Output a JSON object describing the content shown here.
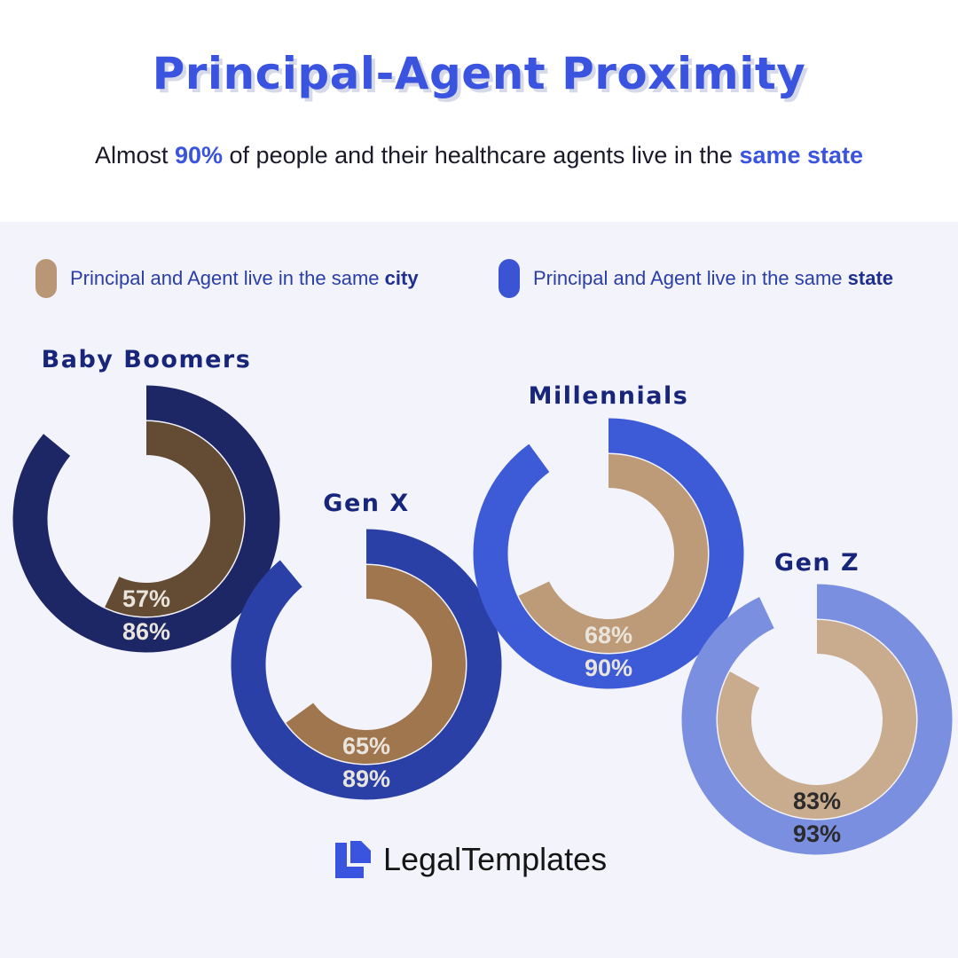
{
  "header": {
    "title": "Principal-Agent Proximity",
    "subtitle_pre": "Almost ",
    "subtitle_pct": "90%",
    "subtitle_mid": " of people and their healthcare agents live in the ",
    "subtitle_end": "same state"
  },
  "legend": {
    "city_text": "Principal and Agent live in the same ",
    "city_bold": "city",
    "state_text": "Principal and Agent live in the same ",
    "state_bold": "state"
  },
  "chart_data": {
    "type": "radial-bar",
    "series": [
      {
        "name": "Principal and Agent live in the same city",
        "values": [
          57,
          65,
          68,
          83
        ]
      },
      {
        "name": "Principal and Agent live in the same state",
        "values": [
          86,
          89,
          90,
          93
        ]
      }
    ],
    "categories": [
      "Baby Boomers",
      "Gen X",
      "Millennials",
      "Gen Z"
    ],
    "value_labels": {
      "city": [
        "57%",
        "65%",
        "68%",
        "83%"
      ],
      "state": [
        "86%",
        "89%",
        "90%",
        "93%"
      ]
    },
    "colors": {
      "outer": [
        "#1d2766",
        "#2a40a6",
        "#3d5bd6",
        "#7a8fe0"
      ],
      "inner": [
        "#644b34",
        "#a0764e",
        "#be9b78",
        "#c9ab8e"
      ],
      "label_light": "#e9e4dc",
      "label_dark": "#2b2b2b",
      "category_label": "#17267a"
    }
  },
  "logo": {
    "text": "LegalTemplates",
    "icon": "document-l-icon",
    "color": "#3a54e0"
  }
}
